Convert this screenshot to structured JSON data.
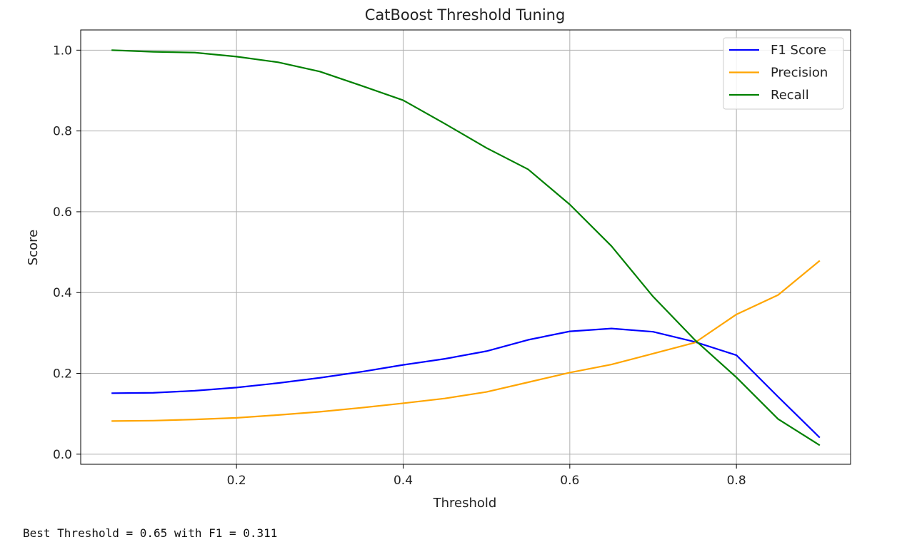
{
  "chart_data": {
    "type": "line",
    "title": "CatBoost Threshold Tuning",
    "xlabel": "Threshold",
    "ylabel": "Score",
    "xlim": [
      0.013,
      0.937
    ],
    "ylim": [
      -0.025,
      1.05
    ],
    "xticks": [
      0.2,
      0.4,
      0.6,
      0.8
    ],
    "yticks": [
      0.0,
      0.2,
      0.4,
      0.6,
      0.8,
      1.0
    ],
    "xtick_labels": [
      "0.2",
      "0.4",
      "0.6",
      "0.8"
    ],
    "ytick_labels": [
      "0.0",
      "0.2",
      "0.4",
      "0.6",
      "0.8",
      "1.0"
    ],
    "grid": true,
    "legend_position": "top-right",
    "x": [
      0.05,
      0.1,
      0.15,
      0.2,
      0.25,
      0.3,
      0.35,
      0.4,
      0.45,
      0.5,
      0.55,
      0.6,
      0.65,
      0.7,
      0.75,
      0.8,
      0.85,
      0.9
    ],
    "series": [
      {
        "name": "F1 Score",
        "color": "#0000ff",
        "values": [
          0.151,
          0.152,
          0.157,
          0.165,
          0.176,
          0.189,
          0.204,
          0.221,
          0.236,
          0.255,
          0.283,
          0.304,
          0.311,
          0.303,
          0.278,
          0.245,
          0.142,
          0.041
        ]
      },
      {
        "name": "Precision",
        "color": "#ffa500",
        "values": [
          0.082,
          0.083,
          0.086,
          0.09,
          0.097,
          0.105,
          0.115,
          0.126,
          0.138,
          0.154,
          0.178,
          0.202,
          0.222,
          0.249,
          0.276,
          0.346,
          0.394,
          0.479
        ]
      },
      {
        "name": "Recall",
        "color": "#008000",
        "values": [
          1.0,
          0.996,
          0.994,
          0.984,
          0.97,
          0.947,
          0.912,
          0.876,
          0.818,
          0.758,
          0.705,
          0.618,
          0.515,
          0.39,
          0.283,
          0.19,
          0.087,
          0.022
        ]
      }
    ]
  },
  "output": {
    "text": "Best Threshold = 0.65 with F1 = 0.311"
  }
}
